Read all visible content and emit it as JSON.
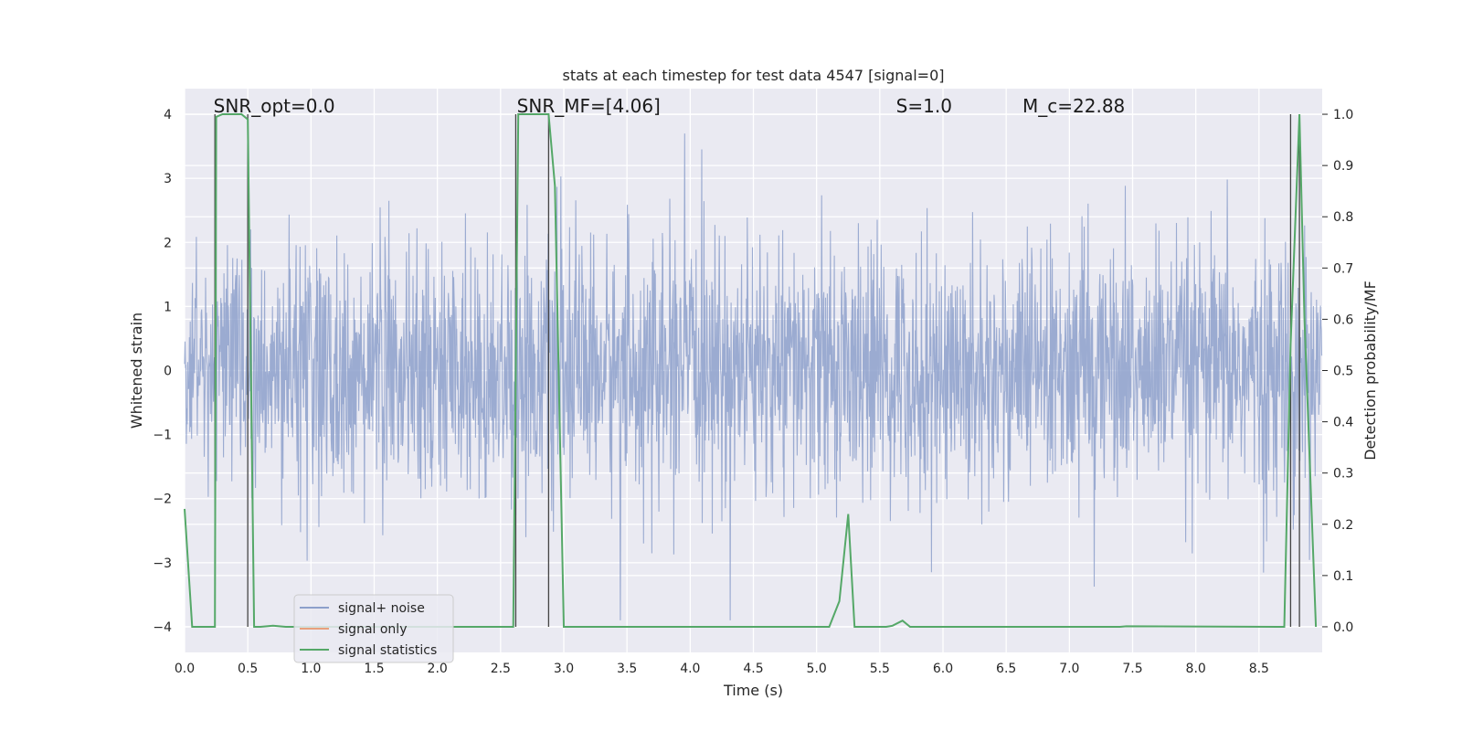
{
  "chart_data": {
    "type": "line",
    "title": "stats at each timestep for test data 4547 [signal=0]",
    "xlabel": "Time (s)",
    "ylabel_left": "Whitened strain",
    "ylabel_right": "Detection probability/MF",
    "xlim": [
      0.0,
      9.0
    ],
    "ylim_left": [
      -4.4,
      4.4
    ],
    "ylim_right": [
      -0.05,
      1.05
    ],
    "xticks": [
      "0.0",
      "0.5",
      "1.0",
      "1.5",
      "2.0",
      "2.5",
      "3.0",
      "3.5",
      "4.0",
      "4.5",
      "5.0",
      "5.5",
      "6.0",
      "6.5",
      "7.0",
      "7.5",
      "8.0",
      "8.5"
    ],
    "xtick_values": [
      0.0,
      0.5,
      1.0,
      1.5,
      2.0,
      2.5,
      3.0,
      3.5,
      4.0,
      4.5,
      5.0,
      5.5,
      6.0,
      6.5,
      7.0,
      7.5,
      8.0,
      8.5
    ],
    "yticks_left": [
      "−4",
      "−3",
      "−2",
      "−1",
      "0",
      "1",
      "2",
      "3",
      "4"
    ],
    "ytick_left_values": [
      -4,
      -3,
      -2,
      -1,
      0,
      1,
      2,
      3,
      4
    ],
    "yticks_right": [
      "0.0",
      "0.1",
      "0.2",
      "0.3",
      "0.4",
      "0.5",
      "0.6",
      "0.7",
      "0.8",
      "0.9",
      "1.0"
    ],
    "ytick_right_values": [
      0.0,
      0.1,
      0.2,
      0.3,
      0.4,
      0.5,
      0.6,
      0.7,
      0.8,
      0.9,
      1.0
    ],
    "grid": true,
    "annotations": [
      {
        "text": "SNR_opt=0.0",
        "x": 0.2
      },
      {
        "text": "SNR_MF=[4.06]",
        "x": 2.6
      },
      {
        "text": "S=1.0",
        "x": 5.6
      },
      {
        "text": "M_c=22.88",
        "x": 6.6
      }
    ],
    "vertical_lines_x": [
      0.24,
      0.5,
      2.62,
      2.88,
      8.75,
      8.82
    ],
    "series": [
      {
        "name": "signal+ noise",
        "axis": "left",
        "color": "#8da0cb",
        "description": "dense whitened noise, roughly ±1.6 bulk with spikes to ±3.6",
        "noise_seed": 4547
      },
      {
        "name": "signal only",
        "axis": "left",
        "color": "#e8a07c",
        "values_constant": 0
      },
      {
        "name": "signal statistics",
        "axis": "right",
        "color": "#55a868",
        "x": [
          0.0,
          0.06,
          0.1,
          0.24,
          0.25,
          0.3,
          0.45,
          0.5,
          0.55,
          0.6,
          0.7,
          0.8,
          2.6,
          2.64,
          2.68,
          2.88,
          2.93,
          3.0,
          3.05,
          5.1,
          5.18,
          5.25,
          5.3,
          5.55,
          5.6,
          5.68,
          5.74,
          7.4,
          7.45,
          8.7,
          8.75,
          8.82,
          8.86,
          8.95
        ],
        "values": [
          0.23,
          0.0,
          0.0,
          0.0,
          0.995,
          1.0,
          1.0,
          0.99,
          0.0,
          0.0,
          0.002,
          0.0,
          0.0,
          1.0,
          1.0,
          1.0,
          0.86,
          0.0,
          0.0,
          0.0,
          0.05,
          0.22,
          0.0,
          0.0,
          0.002,
          0.012,
          0.0,
          0.0,
          0.001,
          0.0,
          0.55,
          1.0,
          0.6,
          0.0
        ]
      }
    ],
    "legend": {
      "placement": "lower-left",
      "entries": [
        "signal+ noise",
        "signal only",
        "signal statistics"
      ]
    },
    "colors": {
      "background": "#eaeaf2",
      "grid": "#ffffff",
      "noise": "#8da0cb",
      "signal_only": "#e8a07c",
      "statistics": "#55a868",
      "vline": "#444444"
    }
  }
}
